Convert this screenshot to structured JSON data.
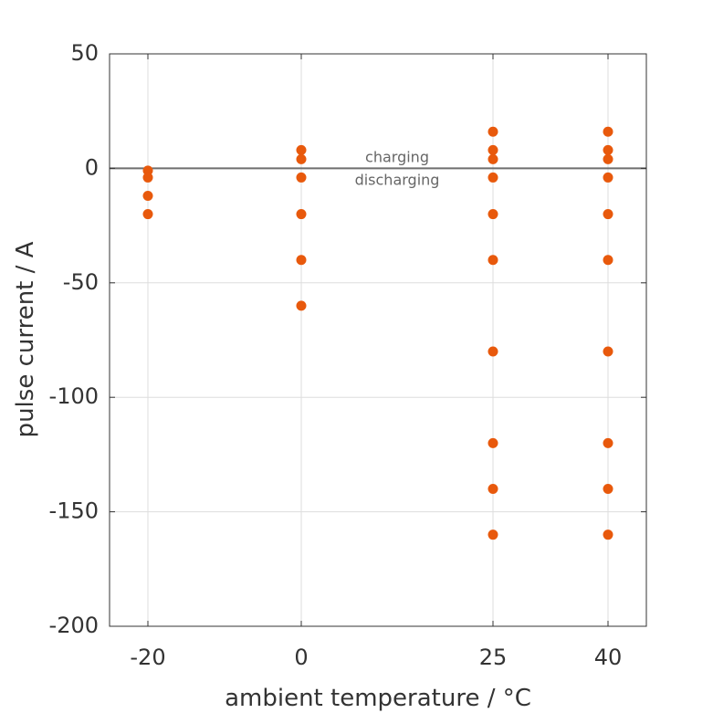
{
  "chart_data": {
    "type": "scatter",
    "xlabel": "ambient temperature / °C",
    "ylabel": "pulse current / A",
    "xlim": [
      -25,
      45
    ],
    "ylim": [
      -200,
      50
    ],
    "x_ticks": [
      -20,
      0,
      25,
      40
    ],
    "x_tick_labels": [
      "-20",
      "0",
      "25",
      "40"
    ],
    "y_ticks": [
      50,
      0,
      -50,
      -100,
      -150,
      -200
    ],
    "y_tick_labels": [
      "50",
      "0",
      "-50",
      "-100",
      "-150",
      "-200"
    ],
    "grid": true,
    "zero_line": true,
    "annotations": [
      {
        "text": "charging",
        "x": 12.5,
        "y": 4.5
      },
      {
        "text": "discharging",
        "x": 12.5,
        "y": -5.5
      }
    ],
    "series": [
      {
        "color": "#e8590c",
        "points": [
          {
            "x": -20,
            "y": -1
          },
          {
            "x": -20,
            "y": -4
          },
          {
            "x": -20,
            "y": -12
          },
          {
            "x": -20,
            "y": -20
          },
          {
            "x": 0,
            "y": 8
          },
          {
            "x": 0,
            "y": 4
          },
          {
            "x": 0,
            "y": -4
          },
          {
            "x": 0,
            "y": -20
          },
          {
            "x": 0,
            "y": -40
          },
          {
            "x": 0,
            "y": -60
          },
          {
            "x": 25,
            "y": 16
          },
          {
            "x": 25,
            "y": 8
          },
          {
            "x": 25,
            "y": 4
          },
          {
            "x": 25,
            "y": -4
          },
          {
            "x": 25,
            "y": -20
          },
          {
            "x": 25,
            "y": -40
          },
          {
            "x": 25,
            "y": -80
          },
          {
            "x": 25,
            "y": -120
          },
          {
            "x": 25,
            "y": -140
          },
          {
            "x": 25,
            "y": -160
          },
          {
            "x": 40,
            "y": 16
          },
          {
            "x": 40,
            "y": 8
          },
          {
            "x": 40,
            "y": 4
          },
          {
            "x": 40,
            "y": -4
          },
          {
            "x": 40,
            "y": -20
          },
          {
            "x": 40,
            "y": -40
          },
          {
            "x": 40,
            "y": -80
          },
          {
            "x": 40,
            "y": -120
          },
          {
            "x": 40,
            "y": -140
          },
          {
            "x": 40,
            "y": -160
          }
        ]
      }
    ]
  }
}
